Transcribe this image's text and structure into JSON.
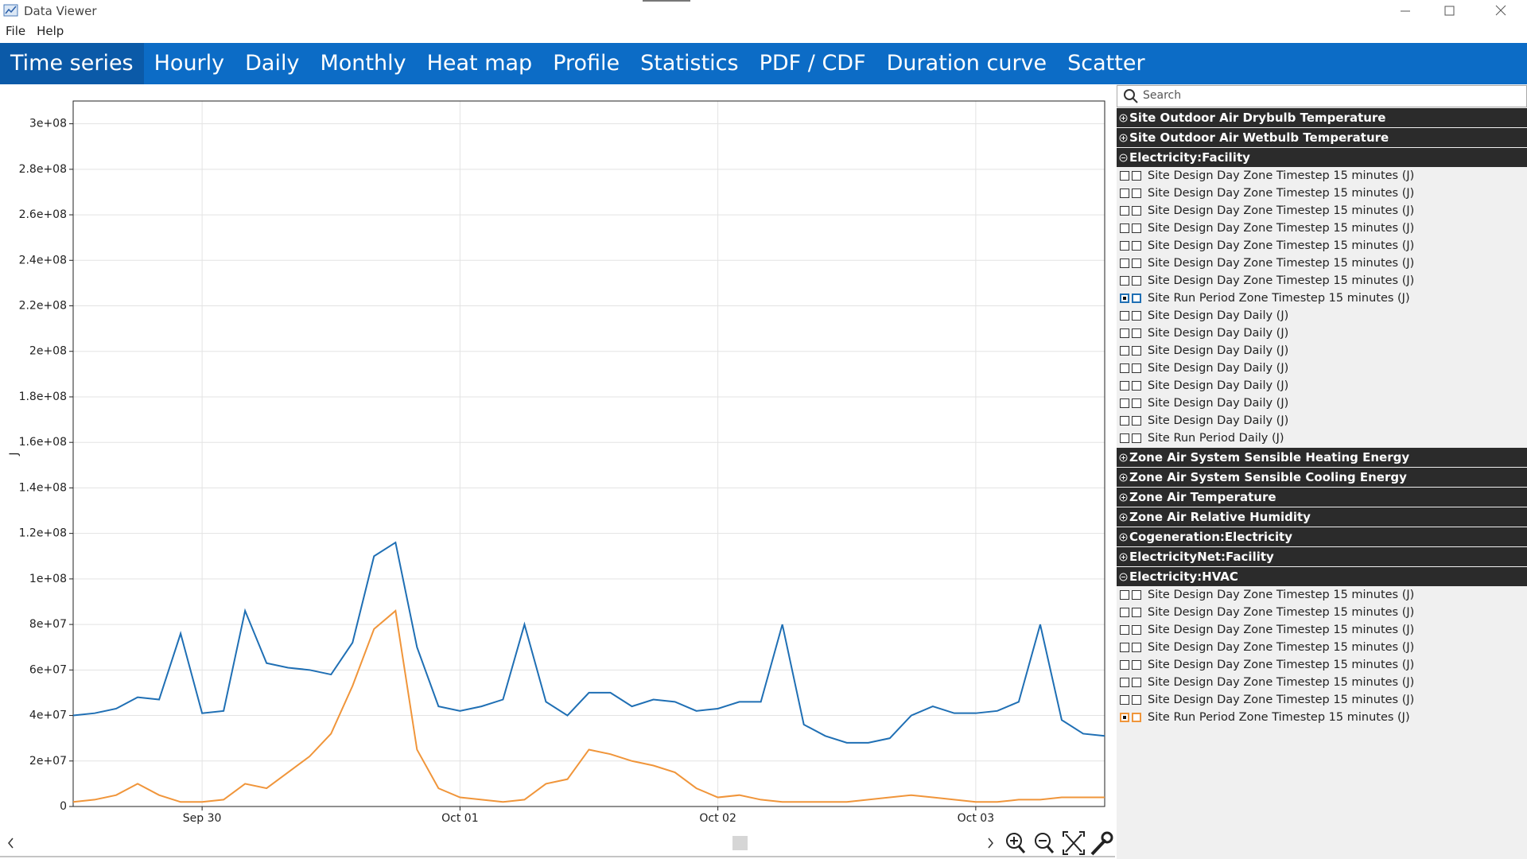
{
  "window": {
    "title": "Data Viewer",
    "menu": [
      "File",
      "Help"
    ]
  },
  "tabs": {
    "items": [
      "Time series",
      "Hourly",
      "Daily",
      "Monthly",
      "Heat map",
      "Profile",
      "Statistics",
      "PDF / CDF",
      "Duration curve",
      "Scatter"
    ],
    "active": 0
  },
  "sidebar": {
    "search_placeholder": "Search",
    "groups": [
      {
        "label": "Site Outdoor Air Drybulb Temperature",
        "expanded": false,
        "items": []
      },
      {
        "label": "Site Outdoor Air Wetbulb Temperature",
        "expanded": false,
        "items": []
      },
      {
        "label": "Electricity:Facility",
        "expanded": true,
        "items": [
          {
            "label": "Site Design Day Zone Timestep 15 minutes (J)",
            "checked": false
          },
          {
            "label": "Site Design Day Zone Timestep 15 minutes (J)",
            "checked": false
          },
          {
            "label": "Site Design Day Zone Timestep 15 minutes (J)",
            "checked": false
          },
          {
            "label": "Site Design Day Zone Timestep 15 minutes (J)",
            "checked": false
          },
          {
            "label": "Site Design Day Zone Timestep 15 minutes (J)",
            "checked": false
          },
          {
            "label": "Site Design Day Zone Timestep 15 minutes (J)",
            "checked": false
          },
          {
            "label": "Site Design Day Zone Timestep 15 minutes (J)",
            "checked": false
          },
          {
            "label": "Site Run Period Zone Timestep 15 minutes (J)",
            "checked": true,
            "color": "#1f6fb4"
          },
          {
            "label": "Site Design Day Daily (J)",
            "checked": false
          },
          {
            "label": "Site Design Day Daily (J)",
            "checked": false
          },
          {
            "label": "Site Design Day Daily (J)",
            "checked": false
          },
          {
            "label": "Site Design Day Daily (J)",
            "checked": false
          },
          {
            "label": "Site Design Day Daily (J)",
            "checked": false
          },
          {
            "label": "Site Design Day Daily (J)",
            "checked": false
          },
          {
            "label": "Site Design Day Daily (J)",
            "checked": false
          },
          {
            "label": "Site Run Period Daily (J)",
            "checked": false
          }
        ]
      },
      {
        "label": "Zone Air System Sensible Heating Energy",
        "expanded": false,
        "items": []
      },
      {
        "label": "Zone Air System Sensible Cooling Energy",
        "expanded": false,
        "items": []
      },
      {
        "label": "Zone Air Temperature",
        "expanded": false,
        "items": []
      },
      {
        "label": "Zone Air Relative Humidity",
        "expanded": false,
        "items": []
      },
      {
        "label": "Cogeneration:Electricity",
        "expanded": false,
        "items": []
      },
      {
        "label": "ElectricityNet:Facility",
        "expanded": false,
        "items": []
      },
      {
        "label": "Electricity:HVAC",
        "expanded": true,
        "items": [
          {
            "label": "Site Design Day Zone Timestep 15 minutes (J)",
            "checked": false
          },
          {
            "label": "Site Design Day Zone Timestep 15 minutes (J)",
            "checked": false
          },
          {
            "label": "Site Design Day Zone Timestep 15 minutes (J)",
            "checked": false
          },
          {
            "label": "Site Design Day Zone Timestep 15 minutes (J)",
            "checked": false
          },
          {
            "label": "Site Design Day Zone Timestep 15 minutes (J)",
            "checked": false
          },
          {
            "label": "Site Design Day Zone Timestep 15 minutes (J)",
            "checked": false
          },
          {
            "label": "Site Design Day Zone Timestep 15 minutes (J)",
            "checked": false
          },
          {
            "label": "Site Run Period Zone Timestep 15 minutes (J)",
            "checked": true,
            "color": "#f0953a"
          }
        ]
      }
    ]
  },
  "chart_data": {
    "type": "line",
    "ylabel": "J",
    "x": [
      0,
      2,
      4,
      6,
      8,
      10,
      12,
      14,
      16,
      18,
      20,
      22,
      24,
      26,
      28,
      30,
      32,
      34,
      36,
      38,
      40,
      42,
      44,
      46,
      48,
      50,
      52,
      54,
      56,
      58,
      60,
      62,
      64,
      66,
      68,
      70,
      72,
      74,
      76,
      78,
      80,
      82,
      84,
      86,
      88,
      90,
      92,
      94,
      96
    ],
    "series": [
      {
        "color": "#1f6fb4",
        "values": [
          40000000,
          41000000,
          43000000,
          48000000,
          47000000,
          76000000,
          41000000,
          42000000,
          86000000,
          63000000,
          61000000,
          60000000,
          58000000,
          72000000,
          110000000,
          116000000,
          70000000,
          44000000,
          42000000,
          44000000,
          47000000,
          80000000,
          46000000,
          40000000,
          50000000,
          50000000,
          44000000,
          47000000,
          46000000,
          42000000,
          43000000,
          46000000,
          46000000,
          80000000,
          36000000,
          31000000,
          28000000,
          28000000,
          30000000,
          40000000,
          44000000,
          41000000,
          41000000,
          42000000,
          46000000,
          80000000,
          38000000,
          32000000,
          31000000
        ]
      },
      {
        "color": "#f0953a",
        "values": [
          2000000,
          3000000,
          5000000,
          10000000,
          5000000,
          2000000,
          2000000,
          3000000,
          10000000,
          8000000,
          15000000,
          22000000,
          32000000,
          53000000,
          78000000,
          86000000,
          25000000,
          8000000,
          4000000,
          3000000,
          2000000,
          3000000,
          10000000,
          12000000,
          25000000,
          23000000,
          20000000,
          18000000,
          15000000,
          8000000,
          4000000,
          5000000,
          3000000,
          2000000,
          2000000,
          2000000,
          2000000,
          3000000,
          4000000,
          5000000,
          4000000,
          3000000,
          2000000,
          2000000,
          3000000,
          3000000,
          4000000,
          4000000,
          4000000
        ]
      }
    ],
    "xlim": [
      0,
      96
    ],
    "xticks": [
      {
        "value": 12,
        "label": "Sep 30"
      },
      {
        "value": 36,
        "label": "Oct 01"
      },
      {
        "value": 60,
        "label": "Oct 02"
      },
      {
        "value": 84,
        "label": "Oct 03"
      }
    ],
    "ylim": [
      0,
      310000000
    ],
    "yticks": [
      0,
      {
        "value": 20000000,
        "label": "2e+07"
      },
      {
        "value": 40000000,
        "label": "4e+07"
      },
      {
        "value": 60000000,
        "label": "6e+07"
      },
      {
        "value": 80000000,
        "label": "8e+07"
      },
      {
        "value": 100000000,
        "label": "1e+08"
      },
      {
        "value": 120000000,
        "label": "1.2e+08"
      },
      {
        "value": 140000000,
        "label": "1.4e+08"
      },
      {
        "value": 160000000,
        "label": "1.6e+08"
      },
      {
        "value": 180000000,
        "label": "1.8e+08"
      },
      {
        "value": 200000000,
        "label": "2e+08"
      },
      {
        "value": 220000000,
        "label": "2.2e+08"
      },
      {
        "value": 240000000,
        "label": "2.4e+08"
      },
      {
        "value": 260000000,
        "label": "2.6e+08"
      },
      {
        "value": 280000000,
        "label": "2.8e+08"
      },
      {
        "value": 300000000,
        "label": "3e+08"
      }
    ],
    "grid": true
  }
}
